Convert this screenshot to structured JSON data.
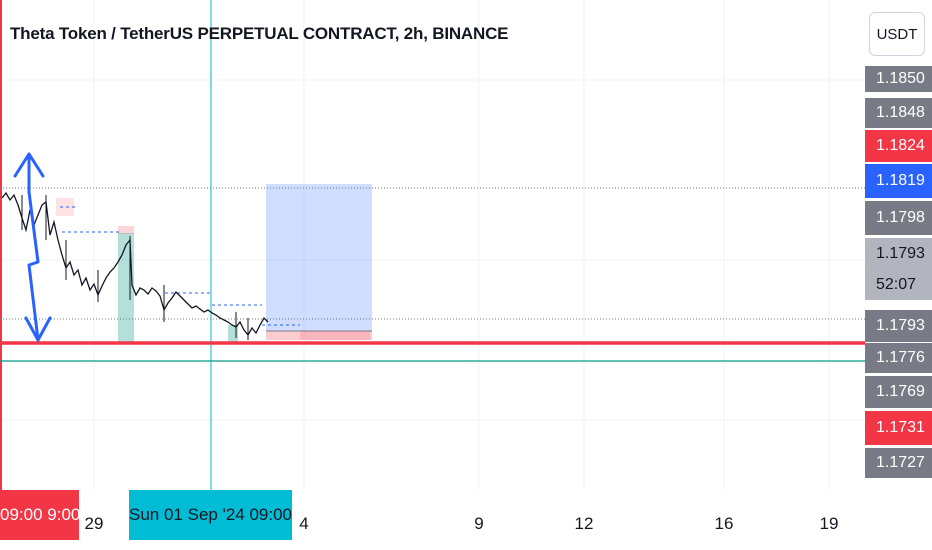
{
  "header": {
    "title": "Theta Token / TetherUS PERPETUAL CONTRACT, 2h, BINANCE",
    "currency_label": "USDT"
  },
  "price_axis": {
    "labels": [
      {
        "text": "1.1850",
        "style": "gray"
      },
      {
        "text": "1.1848",
        "style": "gray"
      },
      {
        "text": "1.1824",
        "style": "red"
      },
      {
        "text": "1.1819",
        "style": "blue"
      },
      {
        "text": "1.1798",
        "style": "gray"
      },
      {
        "text": "1.1793",
        "style": "light"
      },
      {
        "text": "52:07",
        "style": "light"
      },
      {
        "text": "1.1793",
        "style": "gray"
      },
      {
        "text": "1.1776",
        "style": "gray"
      },
      {
        "text": "1.1769",
        "style": "gray"
      },
      {
        "text": "1.1731",
        "style": "red"
      },
      {
        "text": "1.1727",
        "style": "gray"
      }
    ]
  },
  "time_axis": {
    "labels": [
      "29",
      "4",
      "9",
      "12",
      "16",
      "19"
    ],
    "highlight_left": "09:00  9:00",
    "highlight_crosshair": "Sun 01 Sep '24   09:00"
  },
  "colors": {
    "red": "#f23645",
    "blue": "#2962ff",
    "gray": "#787b86",
    "light": "#b2b5be",
    "cyan": "#00bcd4",
    "teal": "#089981"
  },
  "drawing": {
    "arrow_icon": "double-arrow-icon",
    "position_tool": "long-position-box"
  }
}
